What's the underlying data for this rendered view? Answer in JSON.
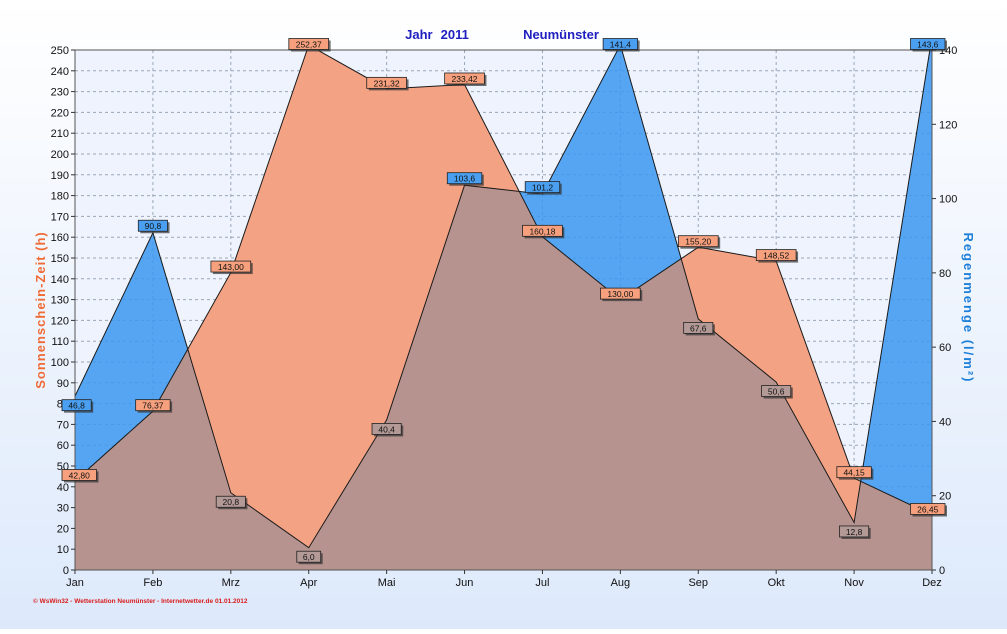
{
  "header": {
    "year_label": "Jahr",
    "year": "2011",
    "station": "Neumünster"
  },
  "footer": {
    "credit": "© WsWin32  -  Wetterstation Neumünster  -  Internetwetter.de   01.01.2012"
  },
  "colors": {
    "sun_fill": "#f4a284",
    "rain_fill": "#3a96f0",
    "overlap_fill": "#b6938f",
    "sun_label": "#f06a35",
    "rain_label": "#1e7fd8",
    "title": "#2020c0",
    "grid": "#9aa6b8"
  },
  "chart_data": {
    "type": "area",
    "categories": [
      "Jan",
      "Feb",
      "Mrz",
      "Apr",
      "Mai",
      "Jun",
      "Jul",
      "Aug",
      "Sep",
      "Okt",
      "Nov",
      "Dez"
    ],
    "ylabel": "Sonnenschein-Zeit  (h)",
    "y2label": "Regenmenge  (l/m²)",
    "ylim": [
      0,
      250
    ],
    "y2lim": [
      0,
      140
    ],
    "yticks": [
      0,
      10,
      20,
      30,
      40,
      50,
      60,
      70,
      80,
      90,
      100,
      110,
      120,
      130,
      140,
      150,
      160,
      170,
      180,
      190,
      200,
      210,
      220,
      230,
      240,
      250
    ],
    "y2ticks": [
      0,
      20,
      40,
      60,
      80,
      100,
      120,
      140
    ],
    "grid": true,
    "series": [
      {
        "key": "sun",
        "axis": "left",
        "values": [
          42.8,
          76.37,
          143.0,
          252.37,
          231.32,
          233.42,
          160.18,
          130.0,
          155.2,
          148.52,
          44.15,
          26.45
        ],
        "labels": [
          "42,80",
          "76,37",
          "143,00",
          "252,37",
          "231,32",
          "233,42",
          "160,18",
          "130,00",
          "155,20",
          "148,52",
          "44,15",
          "26,45"
        ]
      },
      {
        "key": "rain",
        "axis": "right",
        "values": [
          46.8,
          90.8,
          20.8,
          6.0,
          40.4,
          103.6,
          101.2,
          141.4,
          67.6,
          50.6,
          12.8,
          143.6
        ],
        "labels": [
          "46,8",
          "90,8",
          "20,8",
          "6,0",
          "40,4",
          "103,6",
          "101,2",
          "141,4",
          "67,6",
          "50,6",
          "12,8",
          "143,6"
        ]
      }
    ]
  }
}
